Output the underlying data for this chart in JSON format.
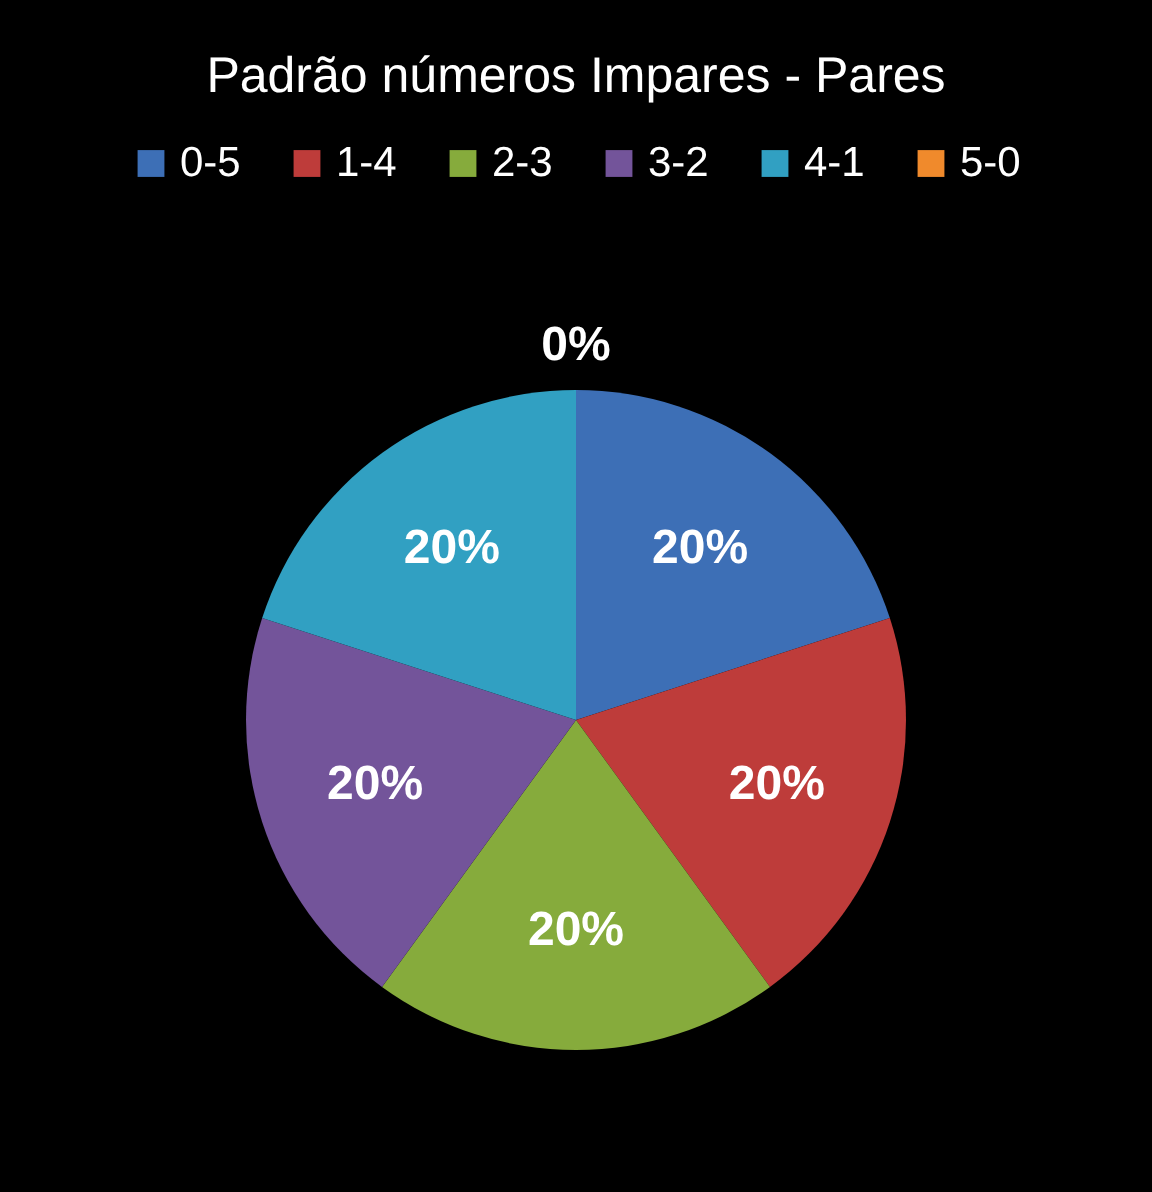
{
  "chart_data": {
    "type": "pie",
    "title": "Padrão números Impares - Pares",
    "categories": [
      "0-5",
      "1-4",
      "2-3",
      "3-2",
      "4-1",
      "5-0"
    ],
    "values": [
      20,
      20,
      20,
      20,
      20,
      0
    ],
    "colors": [
      "#3d6fb6",
      "#be3c3a",
      "#86ab3c",
      "#73549a",
      "#31a0c2",
      "#f08a2c"
    ],
    "value_labels": [
      "20%",
      "20%",
      "20%",
      "20%",
      "20%",
      "0%"
    ],
    "legend": "top"
  }
}
